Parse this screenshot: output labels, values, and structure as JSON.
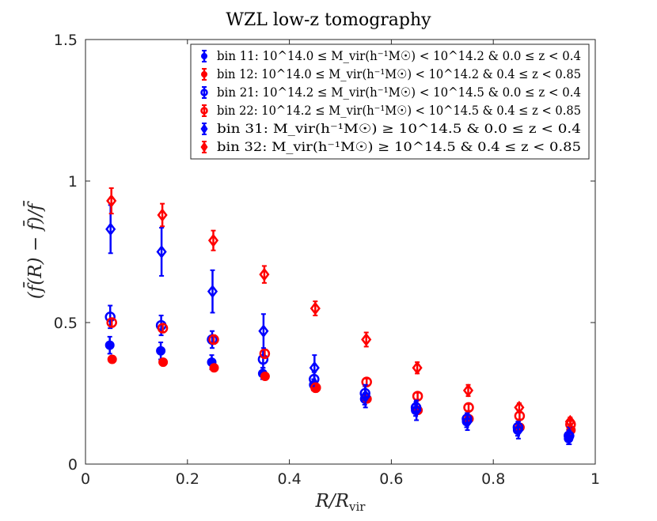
{
  "chart_data": {
    "type": "scatter",
    "title": "WZL low-z tomography",
    "xlabel": "R/R_vir",
    "ylabel": "(f̄(R) − f̄)/f̄",
    "xlim": [
      0,
      1
    ],
    "ylim": [
      0,
      1.5
    ],
    "x_ticks": [
      "0",
      "0.2",
      "0.4",
      "0.6",
      "0.8",
      "1"
    ],
    "y_ticks": [
      "0",
      "0.5",
      "1",
      "1.5"
    ],
    "grid": false,
    "legend_position": "top-right",
    "x": [
      0.05,
      0.15,
      0.25,
      0.35,
      0.45,
      0.55,
      0.65,
      0.75,
      0.85,
      0.95
    ],
    "series": [
      {
        "name": "bin 11: 10^14.0 ≤ M_vir(h⁻¹M☉) < 10^14.2 & 0.0 ≤ z < 0.4",
        "color": "#0000ff",
        "marker": "filled-circle",
        "values": [
          0.42,
          0.4,
          0.36,
          0.32,
          0.28,
          0.23,
          0.19,
          0.15,
          0.12,
          0.09
        ],
        "errors": [
          0.03,
          0.03,
          0.025,
          0.02,
          0.02,
          0.02,
          0.02,
          0.02,
          0.02,
          0.02
        ]
      },
      {
        "name": "bin 12: 10^14.0 ≤ M_vir(h⁻¹M☉) < 10^14.2 & 0.4 ≤ z < 0.85",
        "color": "#ff0000",
        "marker": "filled-circle",
        "values": [
          0.37,
          0.36,
          0.34,
          0.31,
          0.27,
          0.23,
          0.19,
          0.16,
          0.13,
          0.12
        ],
        "errors": [
          0.012,
          0.012,
          0.012,
          0.012,
          0.012,
          0.012,
          0.012,
          0.012,
          0.012,
          0.012
        ]
      },
      {
        "name": "bin 21: 10^14.2 ≤ M_vir(h⁻¹M☉) < 10^14.5 & 0.0 ≤ z < 0.4",
        "color": "#0000ff",
        "marker": "open-circle",
        "values": [
          0.52,
          0.49,
          0.44,
          0.37,
          0.3,
          0.25,
          0.2,
          0.16,
          0.13,
          0.1
        ],
        "errors": [
          0.04,
          0.035,
          0.03,
          0.03,
          0.025,
          0.025,
          0.02,
          0.02,
          0.02,
          0.02
        ]
      },
      {
        "name": "bin 22: 10^14.2 ≤ M_vir(h⁻¹M☉) < 10^14.5 & 0.4 ≤ z < 0.85",
        "color": "#ff0000",
        "marker": "open-circle",
        "values": [
          0.5,
          0.48,
          0.44,
          0.39,
          0.27,
          0.29,
          0.24,
          0.2,
          0.17,
          0.14
        ],
        "errors": [
          0.015,
          0.015,
          0.015,
          0.015,
          0.015,
          0.012,
          0.012,
          0.012,
          0.012,
          0.012
        ]
      },
      {
        "name": "bin 31: M_vir(h⁻¹M☉) ≥ 10^14.5 & 0.0 ≤ z < 0.4",
        "color": "#0000ff",
        "marker": "open-diamond",
        "values": [
          0.83,
          0.75,
          0.61,
          0.47,
          0.34,
          0.24,
          0.19,
          0.15,
          0.12,
          0.1
        ],
        "errors": [
          0.085,
          0.085,
          0.075,
          0.06,
          0.045,
          0.04,
          0.035,
          0.03,
          0.03,
          0.03
        ]
      },
      {
        "name": "bin 32: M_vir(h⁻¹M☉) ≥ 10^14.5 & 0.4 ≤ z < 0.85",
        "color": "#ff0000",
        "marker": "open-diamond",
        "values": [
          0.93,
          0.88,
          0.79,
          0.67,
          0.55,
          0.44,
          0.34,
          0.26,
          0.2,
          0.15
        ],
        "errors": [
          0.045,
          0.04,
          0.035,
          0.03,
          0.025,
          0.025,
          0.02,
          0.02,
          0.015,
          0.015
        ]
      }
    ],
    "legend_labels": [
      "bin 11: 10^14.0 ≤ M_vir(h⁻¹M☉) < 10^14.2 & 0.0 ≤ z < 0.4",
      "bin 12: 10^14.0 ≤ M_vir(h⁻¹M☉) < 10^14.2 & 0.4 ≤ z < 0.85",
      "bin 21: 10^14.2 ≤ M_vir(h⁻¹M☉) < 10^14.5 & 0.0 ≤ z < 0.4",
      "bin 22: 10^14.2 ≤ M_vir(h⁻¹M☉) < 10^14.5 & 0.4 ≤ z < 0.85",
      "bin 31: M_vir(h⁻¹M☉) ≥ 10^14.5 & 0.0 ≤ z < 0.4",
      "bin 32: M_vir(h⁻¹M☉) ≥ 10^14.5 & 0.4 ≤ z < 0.85"
    ]
  }
}
